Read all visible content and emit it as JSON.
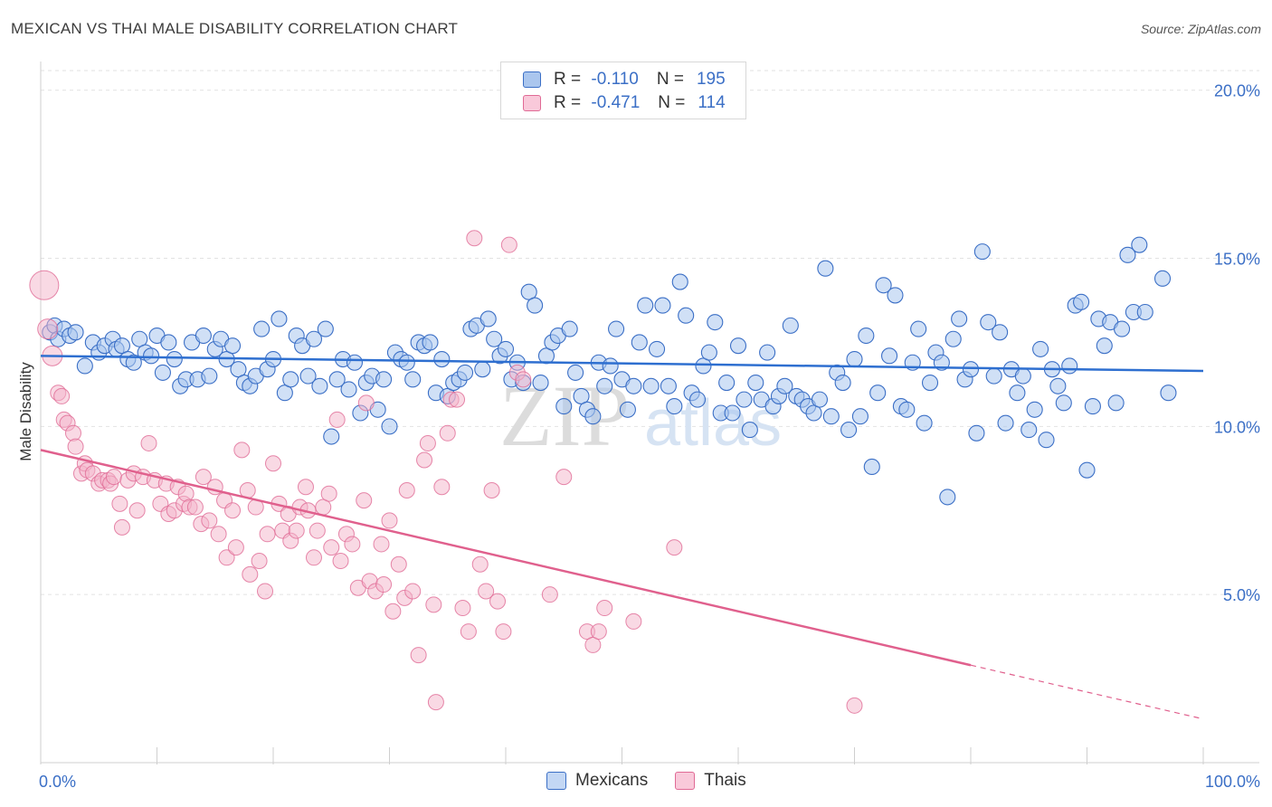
{
  "title": "MEXICAN VS THAI MALE DISABILITY CORRELATION CHART",
  "source": "Source: ZipAtlas.com",
  "watermark": {
    "zip": "ZIP",
    "atlas": "atlas"
  },
  "legend_top": {
    "rows": [
      {
        "r_label": "R =",
        "r_value": "-0.110",
        "n_label": "N =",
        "n_value": "195"
      },
      {
        "r_label": "R =",
        "r_value": "-0.471",
        "n_label": "N =",
        "n_value": "114"
      }
    ]
  },
  "colors": {
    "blue": "#3b6fc6",
    "blue_fill": "#aac6ee",
    "blue_line": "#2e6fd0",
    "pink": "#e06a95",
    "pink_fill": "#f4b3c9",
    "pink_line": "#e0608d",
    "grid": "#e2e2e2",
    "tick_label": "#3b6fc6"
  },
  "chart_data": {
    "type": "scatter",
    "title": "MEXICAN VS THAI MALE DISABILITY CORRELATION CHART",
    "xlabel": "",
    "ylabel": "Male Disability",
    "xlim": [
      0,
      100
    ],
    "ylim": [
      0,
      20.8
    ],
    "x_tick_labels": [
      "0.0%",
      "100.0%"
    ],
    "y_ticks": [
      5,
      10,
      15,
      20
    ],
    "y_tick_labels": [
      "5.0%",
      "10.0%",
      "15.0%",
      "20.0%"
    ],
    "grid": "horizontal dashed",
    "legend_placement": "bottom-center",
    "series": [
      {
        "name": "Mexicans",
        "color": "#3b6fc6",
        "trend": {
          "x": [
            0,
            100
          ],
          "y": [
            12.1,
            11.65
          ]
        },
        "points": [
          [
            0.8,
            12.8
          ],
          [
            1.2,
            13.0
          ],
          [
            1.5,
            12.6
          ],
          [
            2.0,
            12.9
          ],
          [
            2.5,
            12.7
          ],
          [
            3.0,
            12.8
          ],
          [
            3.8,
            11.8
          ],
          [
            4.5,
            12.5
          ],
          [
            5.0,
            12.2
          ],
          [
            5.5,
            12.4
          ],
          [
            6.2,
            12.6
          ],
          [
            6.5,
            12.3
          ],
          [
            7.0,
            12.4
          ],
          [
            7.5,
            12.0
          ],
          [
            8.0,
            11.9
          ],
          [
            8.5,
            12.6
          ],
          [
            9.0,
            12.2
          ],
          [
            9.5,
            12.1
          ],
          [
            10.0,
            12.7
          ],
          [
            10.5,
            11.6
          ],
          [
            11.0,
            12.5
          ],
          [
            11.5,
            12.0
          ],
          [
            12.0,
            11.2
          ],
          [
            12.5,
            11.4
          ],
          [
            13.0,
            12.5
          ],
          [
            13.5,
            11.4
          ],
          [
            14.0,
            12.7
          ],
          [
            14.5,
            11.5
          ],
          [
            15.0,
            12.3
          ],
          [
            15.5,
            12.6
          ],
          [
            16.0,
            12.0
          ],
          [
            16.5,
            12.4
          ],
          [
            17.0,
            11.7
          ],
          [
            17.5,
            11.3
          ],
          [
            18.0,
            11.2
          ],
          [
            18.5,
            11.5
          ],
          [
            19.0,
            12.9
          ],
          [
            19.5,
            11.7
          ],
          [
            20.0,
            12.0
          ],
          [
            20.5,
            13.2
          ],
          [
            21.0,
            11.0
          ],
          [
            21.5,
            11.4
          ],
          [
            22.0,
            12.7
          ],
          [
            22.5,
            12.4
          ],
          [
            23.0,
            11.5
          ],
          [
            23.5,
            12.6
          ],
          [
            24.0,
            11.2
          ],
          [
            24.5,
            12.9
          ],
          [
            25.0,
            9.7
          ],
          [
            25.5,
            11.4
          ],
          [
            26.0,
            12.0
          ],
          [
            26.5,
            11.1
          ],
          [
            27.0,
            11.9
          ],
          [
            27.5,
            10.4
          ],
          [
            28.0,
            11.3
          ],
          [
            28.5,
            11.5
          ],
          [
            29.0,
            10.5
          ],
          [
            29.5,
            11.4
          ],
          [
            30.0,
            10.0
          ],
          [
            30.5,
            12.2
          ],
          [
            31.0,
            12.0
          ],
          [
            31.5,
            11.9
          ],
          [
            32.0,
            11.4
          ],
          [
            32.5,
            12.5
          ],
          [
            33.0,
            12.4
          ],
          [
            33.5,
            12.5
          ],
          [
            34.0,
            11.0
          ],
          [
            34.5,
            12.0
          ],
          [
            35.0,
            10.9
          ],
          [
            35.5,
            11.3
          ],
          [
            36.0,
            11.4
          ],
          [
            36.5,
            11.6
          ],
          [
            37.0,
            12.9
          ],
          [
            37.5,
            13.0
          ],
          [
            38.0,
            11.7
          ],
          [
            38.5,
            13.2
          ],
          [
            39.0,
            12.6
          ],
          [
            39.5,
            12.1
          ],
          [
            40.0,
            12.3
          ],
          [
            40.5,
            11.4
          ],
          [
            41.0,
            11.9
          ],
          [
            41.5,
            11.3
          ],
          [
            42.0,
            14.0
          ],
          [
            42.5,
            13.6
          ],
          [
            43.0,
            11.3
          ],
          [
            43.5,
            12.1
          ],
          [
            44.0,
            12.5
          ],
          [
            44.5,
            12.7
          ],
          [
            45.0,
            10.6
          ],
          [
            45.5,
            12.9
          ],
          [
            46.0,
            11.6
          ],
          [
            46.5,
            10.9
          ],
          [
            47.0,
            10.5
          ],
          [
            47.5,
            10.3
          ],
          [
            48.0,
            11.9
          ],
          [
            48.5,
            11.2
          ],
          [
            49.0,
            11.8
          ],
          [
            49.5,
            12.9
          ],
          [
            50.0,
            11.4
          ],
          [
            50.5,
            10.5
          ],
          [
            51.0,
            11.2
          ],
          [
            51.5,
            12.5
          ],
          [
            52.0,
            13.6
          ],
          [
            52.5,
            11.2
          ],
          [
            53.0,
            12.3
          ],
          [
            53.5,
            13.6
          ],
          [
            54.0,
            11.2
          ],
          [
            54.5,
            10.6
          ],
          [
            55.0,
            14.3
          ],
          [
            55.5,
            13.3
          ],
          [
            56.0,
            11.0
          ],
          [
            56.5,
            10.8
          ],
          [
            57.0,
            11.8
          ],
          [
            57.5,
            12.2
          ],
          [
            58.0,
            13.1
          ],
          [
            58.5,
            10.4
          ],
          [
            59.0,
            11.3
          ],
          [
            59.5,
            10.4
          ],
          [
            60.0,
            12.4
          ],
          [
            60.5,
            10.8
          ],
          [
            61.0,
            9.9
          ],
          [
            61.5,
            11.3
          ],
          [
            62.0,
            10.8
          ],
          [
            62.5,
            12.2
          ],
          [
            63.0,
            10.6
          ],
          [
            63.5,
            10.9
          ],
          [
            64.0,
            11.2
          ],
          [
            64.5,
            13.0
          ],
          [
            65.0,
            10.9
          ],
          [
            65.5,
            10.8
          ],
          [
            66.0,
            10.6
          ],
          [
            66.5,
            10.4
          ],
          [
            67.0,
            10.8
          ],
          [
            67.5,
            14.7
          ],
          [
            68.0,
            10.3
          ],
          [
            68.5,
            11.6
          ],
          [
            69.0,
            11.3
          ],
          [
            69.5,
            9.9
          ],
          [
            70.0,
            12.0
          ],
          [
            70.5,
            10.3
          ],
          [
            71.0,
            12.7
          ],
          [
            71.5,
            8.8
          ],
          [
            72.0,
            11.0
          ],
          [
            72.5,
            14.2
          ],
          [
            73.0,
            12.1
          ],
          [
            73.5,
            13.9
          ],
          [
            74.0,
            10.6
          ],
          [
            74.5,
            10.5
          ],
          [
            75.0,
            11.9
          ],
          [
            75.5,
            12.9
          ],
          [
            76.0,
            10.1
          ],
          [
            76.5,
            11.3
          ],
          [
            77.0,
            12.2
          ],
          [
            77.5,
            11.9
          ],
          [
            78.0,
            7.9
          ],
          [
            78.5,
            12.6
          ],
          [
            79.0,
            13.2
          ],
          [
            79.5,
            11.4
          ],
          [
            80.0,
            11.7
          ],
          [
            80.5,
            9.8
          ],
          [
            81.0,
            15.2
          ],
          [
            81.5,
            13.1
          ],
          [
            82.0,
            11.5
          ],
          [
            82.5,
            12.8
          ],
          [
            83.0,
            10.1
          ],
          [
            83.5,
            11.7
          ],
          [
            84.0,
            11.0
          ],
          [
            84.5,
            11.5
          ],
          [
            85.0,
            9.9
          ],
          [
            85.5,
            10.5
          ],
          [
            86.0,
            12.3
          ],
          [
            86.5,
            9.6
          ],
          [
            87.0,
            11.7
          ],
          [
            87.5,
            11.2
          ],
          [
            88.0,
            10.7
          ],
          [
            88.5,
            11.8
          ],
          [
            89.0,
            13.6
          ],
          [
            89.5,
            13.7
          ],
          [
            90.0,
            8.7
          ],
          [
            90.5,
            10.6
          ],
          [
            91.0,
            13.2
          ],
          [
            91.5,
            12.4
          ],
          [
            92.0,
            13.1
          ],
          [
            92.5,
            10.7
          ],
          [
            93.0,
            12.9
          ],
          [
            93.5,
            15.1
          ],
          [
            94.0,
            13.4
          ],
          [
            94.5,
            15.4
          ],
          [
            95.0,
            13.4
          ],
          [
            96.5,
            14.4
          ],
          [
            97.0,
            11.0
          ]
        ]
      },
      {
        "name": "Thais",
        "color": "#e06a95",
        "trend": {
          "x": [
            0,
            80
          ],
          "y": [
            9.3,
            2.9
          ]
        },
        "trend_dashed": {
          "x": [
            80,
            100
          ],
          "y": [
            2.9,
            1.3
          ]
        },
        "points": [
          [
            0.3,
            14.2
          ],
          [
            0.6,
            12.9
          ],
          [
            1.0,
            12.1
          ],
          [
            1.5,
            11.0
          ],
          [
            1.8,
            10.9
          ],
          [
            2.0,
            10.2
          ],
          [
            2.3,
            10.1
          ],
          [
            2.8,
            9.8
          ],
          [
            3.0,
            9.4
          ],
          [
            3.5,
            8.6
          ],
          [
            3.8,
            8.9
          ],
          [
            4.0,
            8.7
          ],
          [
            4.5,
            8.6
          ],
          [
            5.0,
            8.3
          ],
          [
            5.3,
            8.4
          ],
          [
            5.8,
            8.4
          ],
          [
            6.0,
            8.3
          ],
          [
            6.3,
            8.5
          ],
          [
            6.8,
            7.7
          ],
          [
            7.0,
            7.0
          ],
          [
            7.5,
            8.4
          ],
          [
            8.0,
            8.6
          ],
          [
            8.3,
            7.5
          ],
          [
            8.8,
            8.5
          ],
          [
            9.3,
            9.5
          ],
          [
            9.8,
            8.4
          ],
          [
            10.3,
            7.7
          ],
          [
            10.8,
            8.3
          ],
          [
            11.0,
            7.4
          ],
          [
            11.5,
            7.5
          ],
          [
            11.8,
            8.2
          ],
          [
            12.3,
            7.7
          ],
          [
            12.5,
            8.0
          ],
          [
            12.8,
            7.6
          ],
          [
            13.3,
            7.6
          ],
          [
            13.8,
            7.1
          ],
          [
            14.0,
            8.5
          ],
          [
            14.5,
            7.2
          ],
          [
            15.0,
            8.2
          ],
          [
            15.3,
            6.8
          ],
          [
            15.8,
            7.8
          ],
          [
            16.0,
            6.1
          ],
          [
            16.5,
            7.5
          ],
          [
            16.8,
            6.4
          ],
          [
            17.3,
            9.3
          ],
          [
            17.8,
            8.1
          ],
          [
            18.0,
            5.6
          ],
          [
            18.5,
            7.6
          ],
          [
            18.8,
            6.0
          ],
          [
            19.3,
            5.1
          ],
          [
            19.5,
            6.8
          ],
          [
            20.0,
            8.9
          ],
          [
            20.5,
            7.7
          ],
          [
            20.8,
            6.9
          ],
          [
            21.3,
            7.4
          ],
          [
            21.5,
            6.6
          ],
          [
            22.0,
            6.9
          ],
          [
            22.3,
            7.6
          ],
          [
            22.8,
            8.2
          ],
          [
            23.0,
            7.5
          ],
          [
            23.5,
            6.1
          ],
          [
            23.8,
            6.9
          ],
          [
            24.3,
            7.6
          ],
          [
            24.8,
            8.0
          ],
          [
            25.0,
            6.4
          ],
          [
            25.5,
            10.2
          ],
          [
            25.8,
            6.0
          ],
          [
            26.3,
            6.8
          ],
          [
            26.8,
            6.5
          ],
          [
            27.3,
            5.2
          ],
          [
            27.8,
            7.8
          ],
          [
            28.0,
            10.7
          ],
          [
            28.3,
            5.4
          ],
          [
            28.8,
            5.1
          ],
          [
            29.3,
            6.5
          ],
          [
            29.5,
            5.3
          ],
          [
            30.0,
            7.2
          ],
          [
            30.3,
            4.5
          ],
          [
            30.8,
            5.9
          ],
          [
            31.3,
            4.9
          ],
          [
            31.5,
            8.1
          ],
          [
            32.0,
            5.1
          ],
          [
            32.5,
            3.2
          ],
          [
            33.0,
            9.0
          ],
          [
            33.3,
            9.5
          ],
          [
            33.8,
            4.7
          ],
          [
            34.0,
            1.8
          ],
          [
            34.5,
            8.2
          ],
          [
            35.0,
            9.8
          ],
          [
            35.3,
            10.8
          ],
          [
            35.8,
            10.8
          ],
          [
            36.3,
            4.6
          ],
          [
            36.8,
            3.9
          ],
          [
            37.3,
            15.6
          ],
          [
            37.8,
            5.9
          ],
          [
            38.3,
            5.1
          ],
          [
            38.8,
            8.1
          ],
          [
            39.3,
            4.8
          ],
          [
            39.8,
            3.9
          ],
          [
            40.3,
            15.4
          ],
          [
            41.0,
            11.6
          ],
          [
            41.5,
            11.4
          ],
          [
            43.8,
            5.0
          ],
          [
            45.0,
            8.5
          ],
          [
            47.0,
            3.9
          ],
          [
            47.5,
            3.5
          ],
          [
            48.0,
            3.9
          ],
          [
            48.5,
            4.6
          ],
          [
            51.0,
            4.2
          ],
          [
            54.5,
            6.4
          ],
          [
            70.0,
            1.7
          ]
        ]
      }
    ]
  }
}
